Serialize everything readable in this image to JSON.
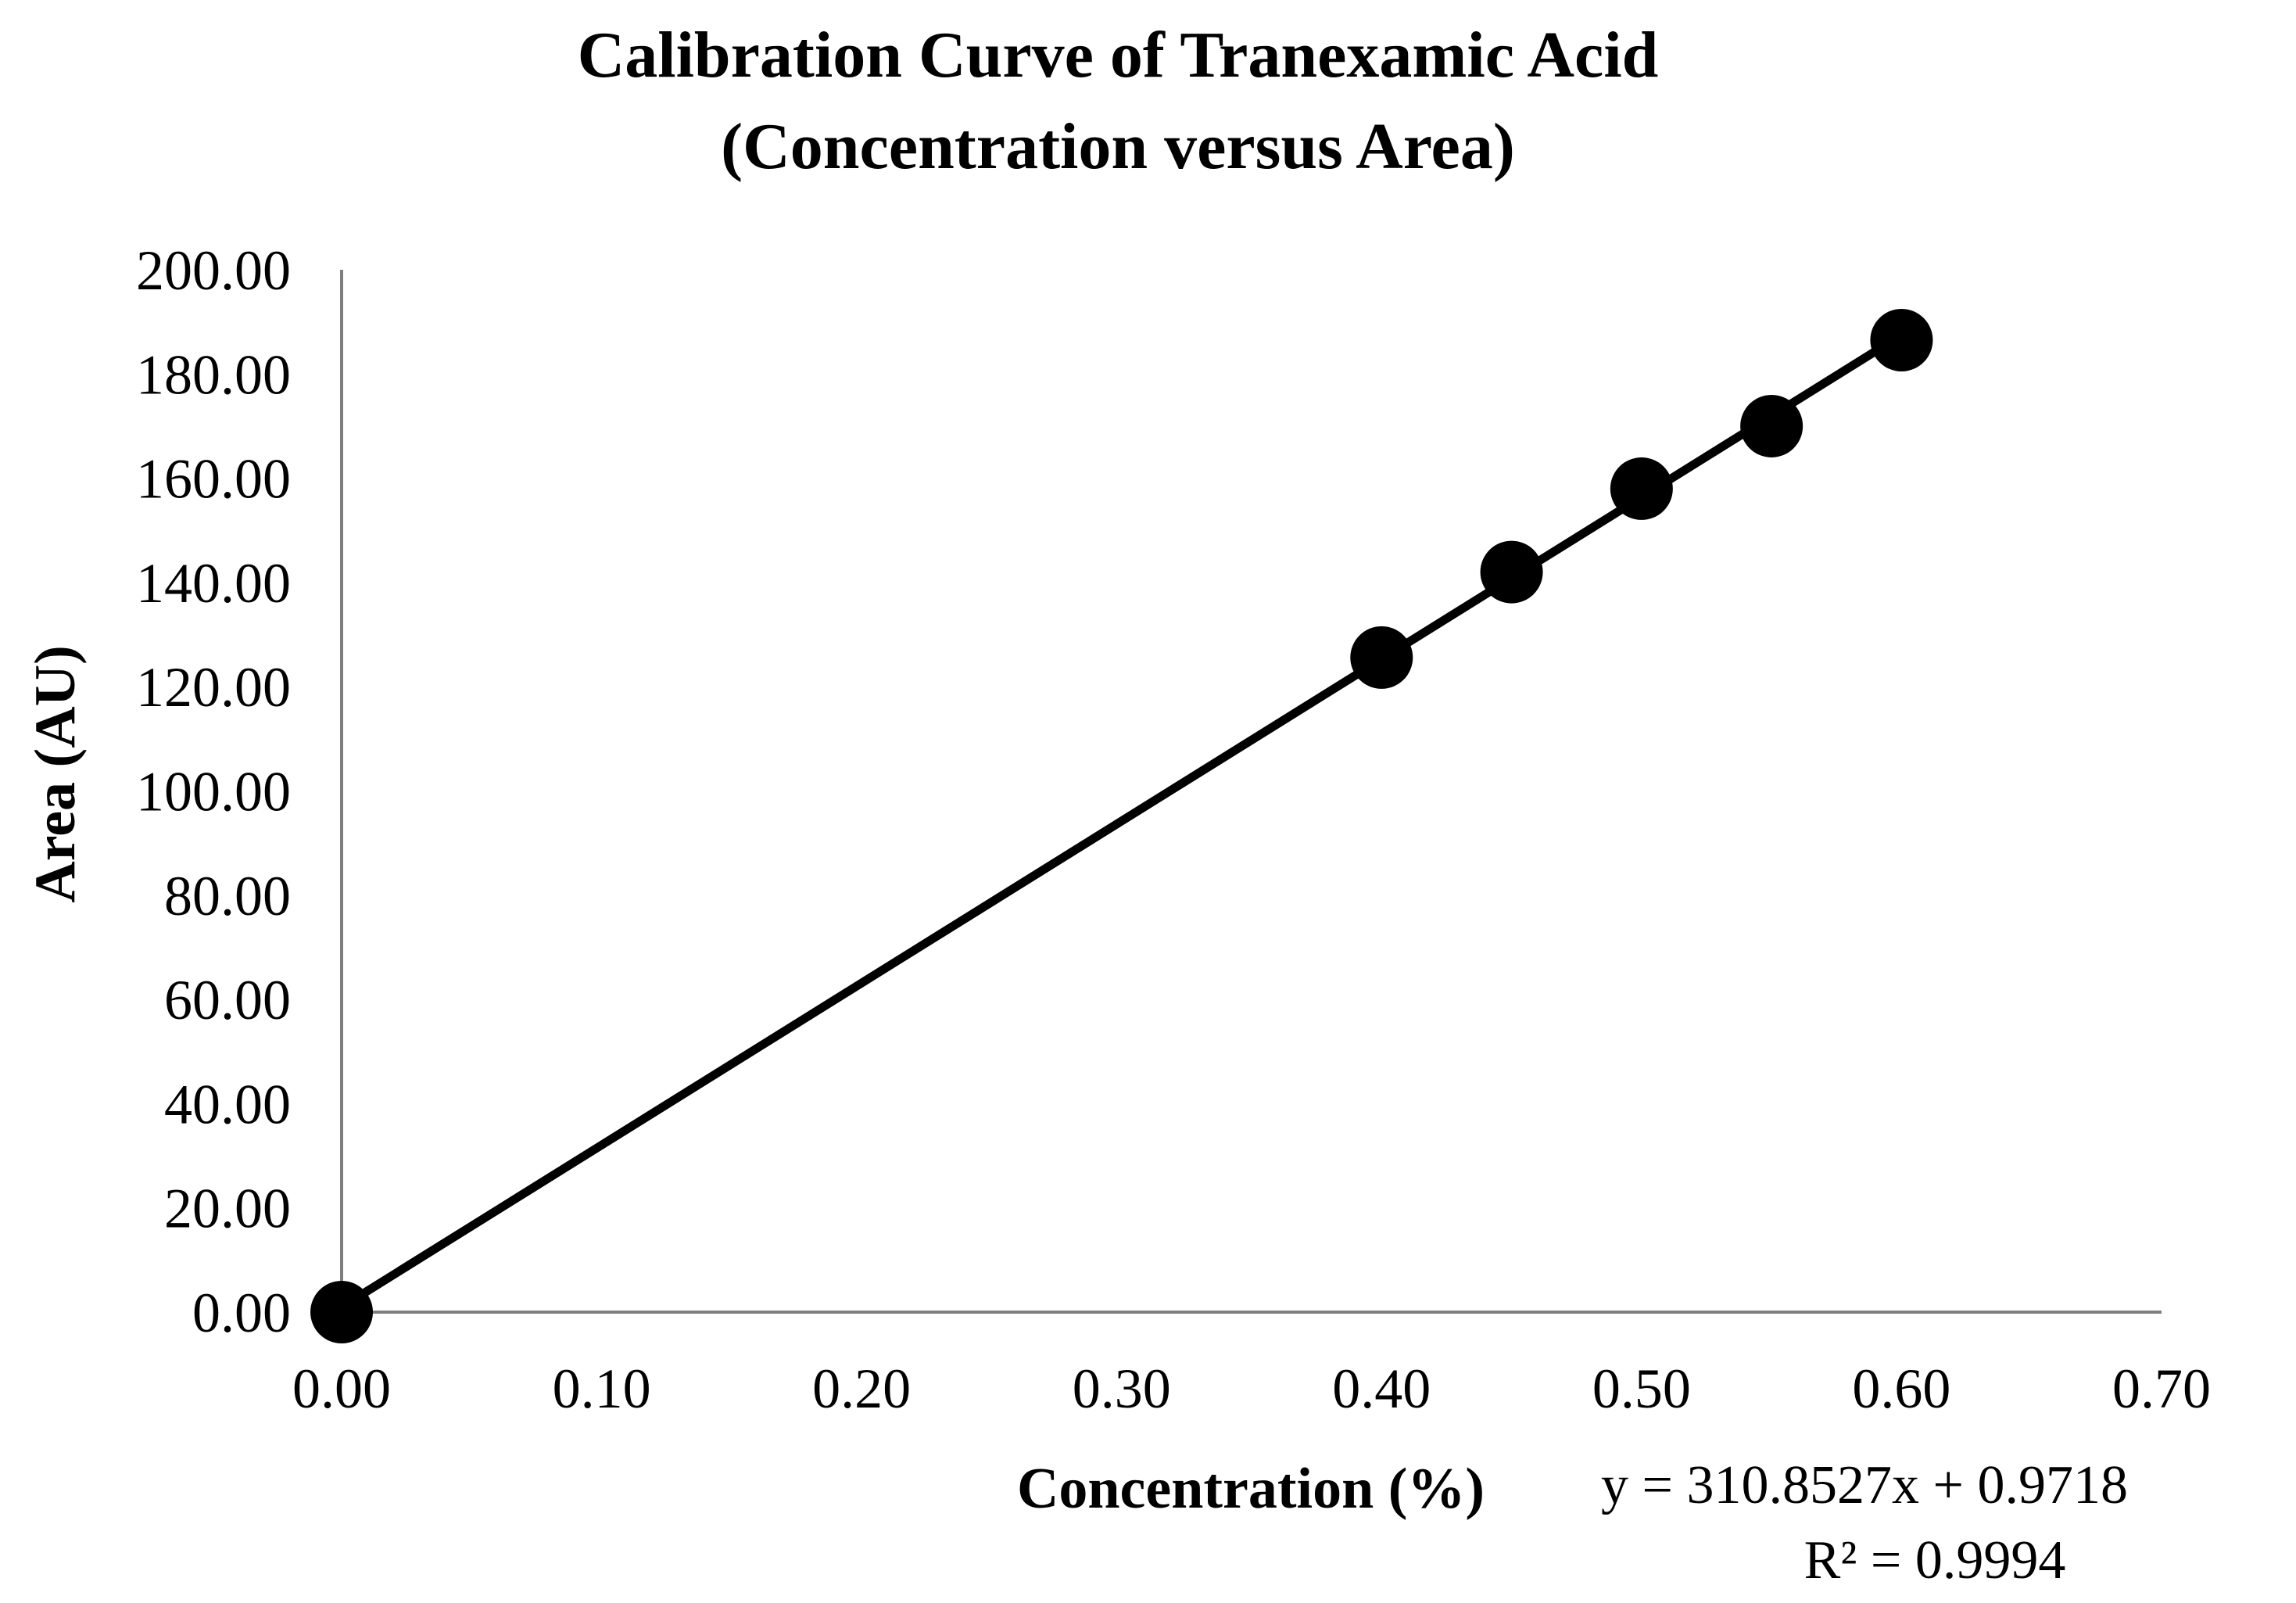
{
  "chart_data": {
    "type": "scatter",
    "title": [
      "Calibration Curve of Tranexamic Acid",
      "(Concentration versus Area)"
    ],
    "xlabel": "Concentration (%)",
    "ylabel": "Area (AU)",
    "xlim": [
      0,
      0.7
    ],
    "ylim": [
      0,
      200
    ],
    "x_ticks": [
      "0.00",
      "0.10",
      "0.20",
      "0.30",
      "0.40",
      "0.50",
      "0.60",
      "0.70"
    ],
    "y_ticks": [
      "0.00",
      "20.00",
      "40.00",
      "60.00",
      "80.00",
      "100.00",
      "120.00",
      "140.00",
      "160.00",
      "180.00",
      "200.00"
    ],
    "grid": false,
    "series": [
      {
        "x": [
          0.0,
          0.4,
          0.45,
          0.5,
          0.55,
          0.6
        ],
        "y": [
          0.0,
          125.6,
          142.0,
          158.0,
          170.0,
          186.5
        ]
      }
    ],
    "trendline": {
      "type": "linear",
      "slope": 310.8527,
      "intercept": 0.9718,
      "equation": "y = 310.8527x + 0.9718",
      "r_squared": "R² = 0.9994"
    },
    "colors": {
      "marker": "#000000",
      "line": "#000000",
      "axis": "#7f7f7f"
    }
  }
}
